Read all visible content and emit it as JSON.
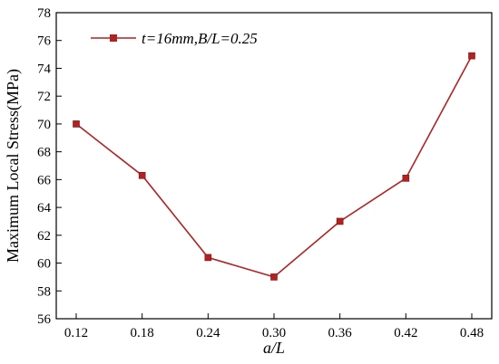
{
  "chart_data": {
    "type": "line",
    "xlabel": "a/L",
    "ylabel": "Maximum Local Stress(MPa)",
    "categories": [
      "0.12",
      "0.18",
      "0.24",
      "0.30",
      "0.36",
      "0.42",
      "0.48"
    ],
    "x": [
      0.12,
      0.18,
      0.24,
      0.3,
      0.36,
      0.42,
      0.48
    ],
    "ylim": [
      56,
      78
    ],
    "yticks": [
      "56",
      "58",
      "60",
      "62",
      "64",
      "66",
      "68",
      "70",
      "72",
      "74",
      "76",
      "78"
    ],
    "grid": false,
    "legend_position": "top-left",
    "series": [
      {
        "name": "t=16mm,B/L=0.25",
        "values": [
          70.0,
          66.3,
          60.4,
          59.0,
          63.0,
          66.1,
          74.9
        ],
        "color": "#b22222",
        "marker": "square"
      }
    ]
  }
}
